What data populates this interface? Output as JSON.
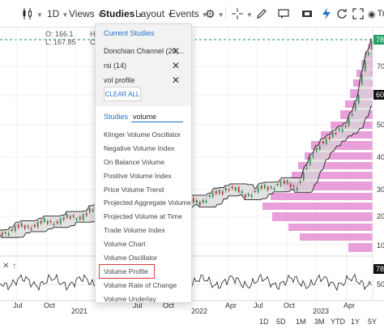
{
  "toolbar": {
    "interval": "1D",
    "views": "Views",
    "studies": "Studies",
    "layout": "Layout",
    "events": "Events",
    "trade": "Tra",
    "icons": [
      "candle-icon",
      "gear-icon",
      "crosshair-icon",
      "draw-icon",
      "comment-icon",
      "ticket-icon",
      "lightning-icon",
      "refresh-icon",
      "fullscreen-icon",
      "trade-icon"
    ]
  },
  "ohlc": {
    "o_label": "O:",
    "o_value": "166.1",
    "l_label": "L:",
    "l_value": "167.85",
    "h_label": "H",
    "c_label": "C"
  },
  "studies_menu": {
    "current_title": "Current Studies",
    "current": [
      {
        "label": "Donchian Channel (20,..."
      },
      {
        "label": "rsi (14)"
      },
      {
        "label": "vol profile"
      }
    ],
    "clear_all": "CLEAR ALL",
    "search_label": "Studies",
    "search_value": "volume",
    "results": [
      "Klinger Volume Oscillator",
      "Negative Volume Index",
      "On Balance Volume",
      "Positive Volume Index",
      "Price Volume Trend",
      "Projected Aggregate Volume",
      "Projected Volume at Time",
      "Trade Volume Index",
      "Volume Chart",
      "Volume Oscillator",
      "Volume Profile",
      "Volume Rate of Change",
      "Volume Underlay"
    ],
    "highlighted": "Volume Profile"
  },
  "price_axis": {
    "last_price": "78",
    "ticks": [
      "70",
      "60",
      "50",
      "40",
      "30",
      "20",
      "10"
    ],
    "rsi_last": "78",
    "rsi_ticks": [
      "50"
    ]
  },
  "time_axis": {
    "labels": [
      "Jul",
      "Oct",
      "Jul",
      "Oct",
      "Apr",
      "Jul",
      "Oct",
      "Apr"
    ],
    "years": [
      "2021",
      "2022",
      "2023"
    ]
  },
  "ranges": [
    "1D",
    "5D",
    "1M",
    "3M",
    "YTD",
    "1Y",
    "5Y"
  ],
  "colors": {
    "accent": "#1f72c8",
    "profile": "#e58fd3",
    "highlight": "#e03b3b",
    "last_price": "#23a06b"
  }
}
